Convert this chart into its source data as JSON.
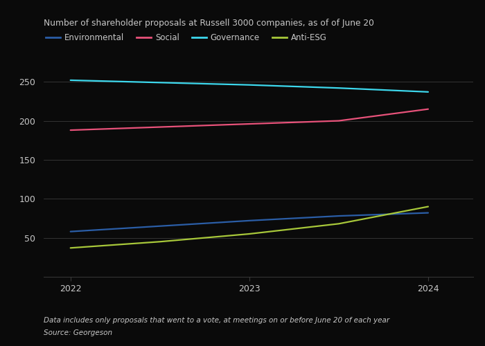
{
  "title": "Number of shareholder proposals at Russell 3000 companies, as of of June 20",
  "footnote1": "Data includes only proposals that went to a vote, at meetings on or before June 20 of each year",
  "footnote2": "Source: Georgeson",
  "background_color": "#0a0a0a",
  "series": [
    {
      "name": "Environmental",
      "color": "#2b5ea7",
      "x": [
        2022.0,
        2022.5,
        2023.0,
        2023.5,
        2024.0
      ],
      "y": [
        58,
        65,
        72,
        78,
        82
      ]
    },
    {
      "name": "Social",
      "color": "#e8527a",
      "x": [
        2022.0,
        2022.5,
        2023.0,
        2023.5,
        2024.0
      ],
      "y": [
        188,
        192,
        196,
        200,
        215
      ]
    },
    {
      "name": "Governance",
      "color": "#3dd8ed",
      "x": [
        2022.0,
        2022.5,
        2023.0,
        2023.5,
        2024.0
      ],
      "y": [
        252,
        249,
        246,
        242,
        237
      ]
    },
    {
      "name": "Anti-ESG",
      "color": "#a8c83a",
      "x": [
        2022.0,
        2022.5,
        2023.0,
        2023.5,
        2024.0
      ],
      "y": [
        37,
        45,
        55,
        68,
        90
      ]
    }
  ],
  "xlim": [
    2021.85,
    2024.25
  ],
  "ylim": [
    0,
    275
  ],
  "yticks": [
    50,
    100,
    150,
    200,
    250
  ],
  "xticks": [
    2022,
    2023,
    2024
  ],
  "grid_color": "#3a3a3a",
  "text_color": "#c8c8c8",
  "legend_labels": [
    "Environmental",
    "Social",
    "Governance",
    "Anti-ESG"
  ],
  "legend_colors": [
    "#2b5ea7",
    "#e8527a",
    "#3dd8ed",
    "#a8c83a"
  ]
}
